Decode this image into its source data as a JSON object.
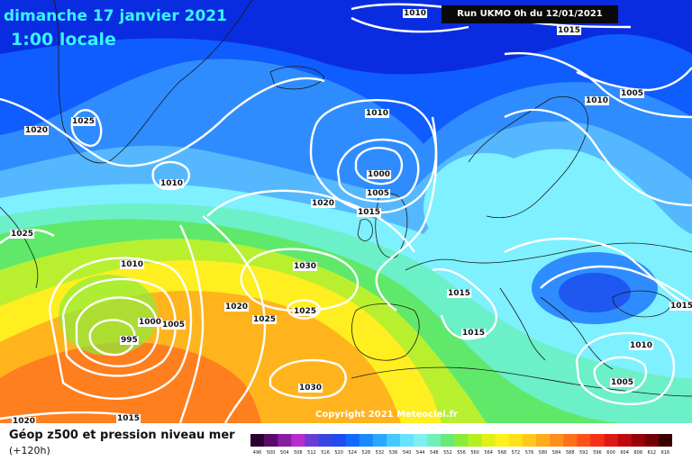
{
  "header": {
    "date": "dimanche 17 janvier 2021",
    "time": "1:00 locale",
    "run": "Run UKMO 0h du 12/01/2021"
  },
  "copyright": "Copyright 2021 Meteociel.fr",
  "legend": {
    "title": "Géop z500 et pression niveau mer",
    "subtitle": "(+120h)",
    "scale_values": [
      "496",
      "500",
      "504",
      "508",
      "512",
      "516",
      "520",
      "524",
      "528",
      "532",
      "536",
      "540",
      "544",
      "548",
      "552",
      "556",
      "560",
      "564",
      "568",
      "572",
      "576",
      "580",
      "584",
      "588",
      "592",
      "596",
      "600",
      "604",
      "608",
      "612",
      "616"
    ],
    "scale_colors": [
      "#2a0030",
      "#5a0a6a",
      "#8a1ca0",
      "#b52ecc",
      "#6c3bd6",
      "#3a44e0",
      "#1e4cf0",
      "#1068ff",
      "#1a8aff",
      "#2aa8ff",
      "#45c8ff",
      "#66e4ff",
      "#7ff0ef",
      "#6ef0b8",
      "#6ae878",
      "#8aec3a",
      "#b4f020",
      "#e0f018",
      "#fff21a",
      "#ffe01a",
      "#ffc81a",
      "#ffac1a",
      "#ff8e1a",
      "#ff701a",
      "#ff501a",
      "#f43016",
      "#de1814",
      "#c00810",
      "#980008",
      "#700004",
      "#3a0000"
    ]
  },
  "map": {
    "colors": {
      "deep_blue": "#0a2ce0",
      "blue": "#0f5cff",
      "mid_blue": "#2f8cff",
      "light_blue": "#55b8ff",
      "cyan": "#7ff0ff",
      "aqua": "#6cf0c8",
      "green": "#60e86a",
      "lime": "#b8f030",
      "yellow": "#ffee20",
      "orange": "#ffb41e",
      "deep_orange": "#ff7e1e",
      "isobar": "#ffffff",
      "coast": "#1a1a1a"
    },
    "isobar_labels": [
      {
        "text": "1010"
      },
      {
        "text": "1015"
      },
      {
        "text": "1005"
      },
      {
        "text": "1010"
      },
      {
        "text": "1025"
      },
      {
        "text": "1020"
      },
      {
        "text": "1010"
      },
      {
        "text": "1010"
      },
      {
        "text": "1000"
      },
      {
        "text": "1005"
      },
      {
        "text": "1020"
      },
      {
        "text": "1015"
      },
      {
        "text": "1025"
      },
      {
        "text": "1010"
      },
      {
        "text": "1030"
      },
      {
        "text": "1015"
      },
      {
        "text": "1000"
      },
      {
        "text": "1005"
      },
      {
        "text": "1020"
      },
      {
        "text": "1025"
      },
      {
        "text": "1025"
      },
      {
        "text": "995"
      },
      {
        "text": "1015"
      },
      {
        "text": "1015"
      },
      {
        "text": "1010"
      },
      {
        "text": "1030"
      },
      {
        "text": "1005"
      },
      {
        "text": "1015"
      },
      {
        "text": "1020"
      }
    ]
  }
}
